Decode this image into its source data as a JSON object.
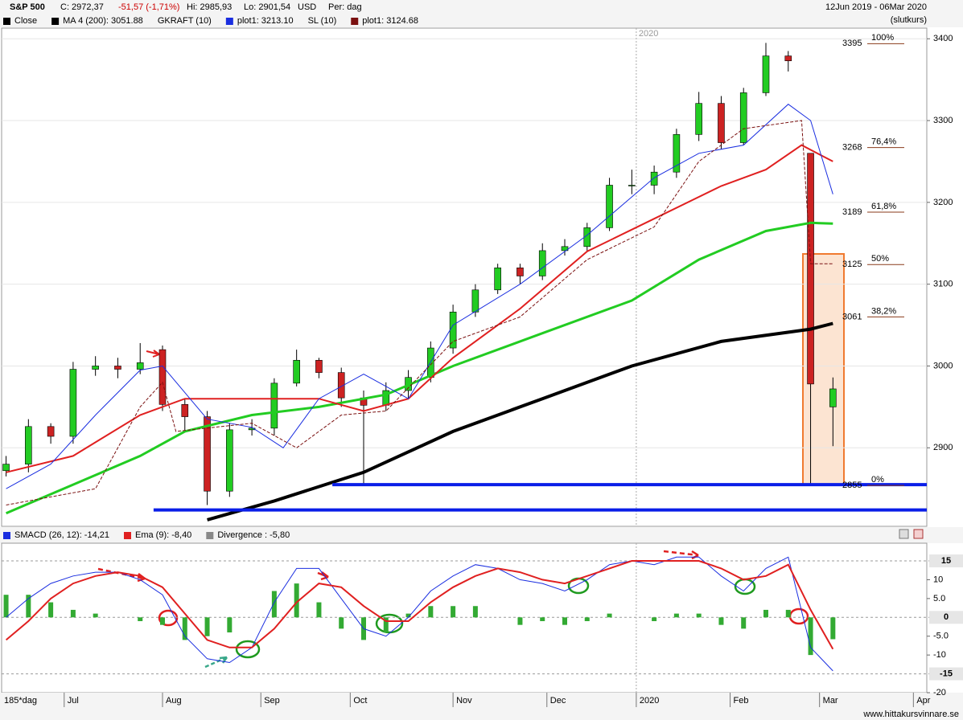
{
  "header": {
    "symbol": "S&P 500",
    "close": "C: 2972,37",
    "change": "-51,57 (-1,71%)",
    "high": "Hi: 2985,93",
    "low": "Lo: 2901,54",
    "currency": "USD",
    "period": "Per: dag",
    "range": "12Jun 2019 - 06Mar 2020",
    "price_type": "(slutkurs)"
  },
  "chart_data": [
    {
      "type": "candlestick",
      "xlim": [
        -1,
        206
      ],
      "ylim": [
        2804,
        3413
      ],
      "yticks": [
        2900,
        3000,
        3100,
        3200,
        3300,
        3400
      ],
      "grid": true,
      "candles": {
        "name": "Close",
        "legend_color": "#000000",
        "up_color": "#22cc22",
        "down_color": "#cc2222",
        "x": [
          0,
          5,
          10,
          15,
          20,
          25,
          30,
          35,
          40,
          45,
          50,
          55,
          60,
          65,
          70,
          75,
          80,
          85,
          90,
          95,
          100,
          105,
          110,
          115,
          120,
          125,
          130,
          135,
          140,
          145,
          150,
          155,
          160,
          165,
          170,
          175,
          180,
          185
        ],
        "open": [
          2872,
          2880,
          2926,
          2914,
          2996,
          3000,
          2996,
          3020,
          2953,
          2938,
          2847,
          2922,
          2924,
          2979,
          3007,
          2992,
          2961,
          2952,
          2970,
          2986,
          3022,
          3066,
          3093,
          3120,
          3110,
          3141,
          3146,
          3169,
          3221,
          3221,
          3237,
          3283,
          3321,
          3273,
          3334,
          3379,
          3260,
          2950
        ],
        "high": [
          2890,
          2935,
          2930,
          3005,
          3012,
          3010,
          3028,
          3025,
          2960,
          2945,
          2930,
          2935,
          2985,
          3020,
          3010,
          2998,
          2970,
          2980,
          2995,
          3030,
          3075,
          3100,
          3125,
          3125,
          3150,
          3155,
          3175,
          3230,
          3240,
          3245,
          3290,
          3335,
          3330,
          3340,
          3395,
          3385,
          3260,
          2986
        ],
        "low": [
          2865,
          2870,
          2905,
          2905,
          2988,
          2985,
          2990,
          2945,
          2920,
          2830,
          2840,
          2915,
          2915,
          2975,
          2985,
          2950,
          2856,
          2945,
          2960,
          2980,
          3015,
          3060,
          3088,
          3100,
          3105,
          3135,
          3140,
          3165,
          3210,
          3210,
          3230,
          3275,
          3265,
          3270,
          3330,
          3360,
          2855,
          2902
        ],
        "close": [
          2880,
          2926,
          2914,
          2996,
          3000,
          2996,
          3004,
          2953,
          2938,
          2847,
          2922,
          2924,
          2979,
          3007,
          2992,
          2961,
          2952,
          2970,
          2986,
          3022,
          3066,
          3093,
          3120,
          3110,
          3141,
          3146,
          3169,
          3221,
          3221,
          3237,
          3283,
          3321,
          3273,
          3334,
          3379,
          3373,
          2978,
          2972
        ]
      },
      "series": [
        {
          "name": "MA 4 (200): 3051.88",
          "color": "#000000",
          "width": 4,
          "x": [
            45,
            60,
            80,
            100,
            120,
            140,
            160,
            180,
            185
          ],
          "values": [
            2812,
            2835,
            2870,
            2920,
            2960,
            3000,
            3030,
            3045,
            3052
          ]
        },
        {
          "color": "#22cc22",
          "width": 3,
          "x": [
            0,
            15,
            30,
            40,
            55,
            70,
            85,
            100,
            120,
            140,
            155,
            170,
            180,
            185
          ],
          "values": [
            2820,
            2855,
            2890,
            2920,
            2940,
            2950,
            2965,
            3000,
            3040,
            3080,
            3130,
            3165,
            3175,
            3174
          ]
        },
        {
          "color": "#e02020",
          "width": 2,
          "x": [
            0,
            15,
            30,
            40,
            55,
            70,
            80,
            90,
            100,
            115,
            130,
            145,
            160,
            170,
            178,
            185
          ],
          "values": [
            2870,
            2890,
            2940,
            2960,
            2960,
            2960,
            2945,
            2960,
            3010,
            3070,
            3140,
            3180,
            3220,
            3240,
            3270,
            3250
          ]
        },
        {
          "group": "GKRAFT (10)",
          "name": "plot1: 3213.10",
          "color": "#1a2ee0",
          "width": 1,
          "x": [
            0,
            10,
            20,
            30,
            35,
            45,
            55,
            62,
            70,
            80,
            90,
            100,
            115,
            130,
            145,
            155,
            165,
            175,
            180,
            185
          ],
          "values": [
            2850,
            2880,
            2940,
            2995,
            3000,
            2935,
            2925,
            2900,
            2960,
            2990,
            2960,
            3050,
            3100,
            3160,
            3230,
            3260,
            3270,
            3320,
            3300,
            3210
          ]
        },
        {
          "group": "SL (10)",
          "name": "plot1: 3124.68",
          "color": "#7a1010",
          "width": 1,
          "dash": true,
          "x": [
            0,
            20,
            30,
            35,
            38,
            55,
            65,
            75,
            85,
            100,
            115,
            130,
            145,
            155,
            165,
            178,
            180,
            185
          ],
          "values": [
            2830,
            2850,
            2950,
            2980,
            2920,
            2930,
            2900,
            2940,
            2945,
            3030,
            3060,
            3130,
            3170,
            3250,
            3290,
            3300,
            3125,
            3125
          ]
        }
      ],
      "support_lines": {
        "color": "#0a1ee8",
        "lines": [
          {
            "value": 2855,
            "from": 73
          },
          {
            "value": 2824,
            "from": 33
          }
        ]
      },
      "fib_levels": [
        {
          "price": 3395,
          "pct": "100%"
        },
        {
          "price": 3268,
          "pct": "76,4%"
        },
        {
          "price": 3189,
          "pct": "61,8%"
        },
        {
          "price": 3125,
          "pct": "50%"
        },
        {
          "price": 3061,
          "pct": "38,2%"
        },
        {
          "price": 2855,
          "pct": "0%"
        }
      ]
    },
    {
      "type": "macd",
      "xlim": [
        -1,
        206
      ],
      "ylim": [
        -20,
        19.7
      ],
      "yticks": [
        15,
        10,
        {
          "value": 5,
          "label": "5.0"
        },
        0,
        {
          "value": -5,
          "label": "-5.0"
        },
        -10,
        -15,
        -20
      ],
      "highlight_ticks": [
        15,
        0,
        -15
      ],
      "xticks": [
        {
          "value": 13,
          "label": "Jul"
        },
        {
          "value": 35,
          "label": "Aug"
        },
        {
          "value": 57,
          "label": "Sep"
        },
        {
          "value": 77,
          "label": "Oct"
        },
        {
          "value": 100,
          "label": "Nov"
        },
        {
          "value": 121,
          "label": "Dec"
        },
        {
          "value": 141,
          "label": "2020"
        },
        {
          "value": 162,
          "label": "Feb"
        },
        {
          "value": 182,
          "label": "Mar"
        },
        {
          "value": 203,
          "label": "Apr"
        }
      ],
      "year_tick": 6,
      "x": [
        0,
        5,
        10,
        15,
        20,
        25,
        30,
        35,
        40,
        45,
        50,
        55,
        60,
        65,
        70,
        75,
        80,
        85,
        90,
        95,
        100,
        105,
        110,
        115,
        120,
        125,
        130,
        135,
        140,
        145,
        150,
        155,
        160,
        165,
        170,
        175,
        180,
        185
      ],
      "series": [
        {
          "name": "SMACD (26, 12): -14,21",
          "color": "#1a2ee0",
          "values": [
            0,
            5,
            9,
            11,
            12,
            12,
            10,
            6,
            -5,
            -11,
            -12,
            -8,
            4,
            13,
            13,
            5,
            -3,
            -5,
            0,
            7,
            11,
            14,
            13,
            10,
            9,
            7,
            10,
            14,
            15,
            14,
            16,
            16,
            11,
            7,
            13,
            16,
            -8,
            -14.21
          ]
        },
        {
          "name": "Ema (9): -8,40",
          "color": "#e02020",
          "values": [
            -6,
            -1,
            5,
            9,
            11,
            12,
            11,
            8,
            1,
            -6,
            -8,
            -8,
            -3,
            4,
            9,
            8,
            3,
            -1,
            -1,
            4,
            8,
            11,
            13,
            12,
            10,
            9,
            11,
            13,
            15,
            15,
            15,
            15,
            13,
            10,
            11,
            14,
            2,
            -8.4
          ]
        },
        {
          "name": "Divergence : -5,80",
          "color": "#888888",
          "bar_color": "#33aa33",
          "bars": true,
          "values": [
            6,
            6,
            4,
            2,
            1,
            0,
            -1,
            -2,
            -6,
            -5,
            -4,
            0,
            7,
            9,
            4,
            -3,
            -6,
            -4,
            1,
            3,
            3,
            3,
            0,
            -2,
            -1,
            -2,
            -1,
            1,
            0,
            -1,
            1,
            1,
            -2,
            -3,
            2,
            2,
            -10,
            -5.8
          ]
        }
      ]
    }
  ],
  "footer": {
    "period": "185*dag",
    "site": "www.hittakursvinnare.se"
  }
}
